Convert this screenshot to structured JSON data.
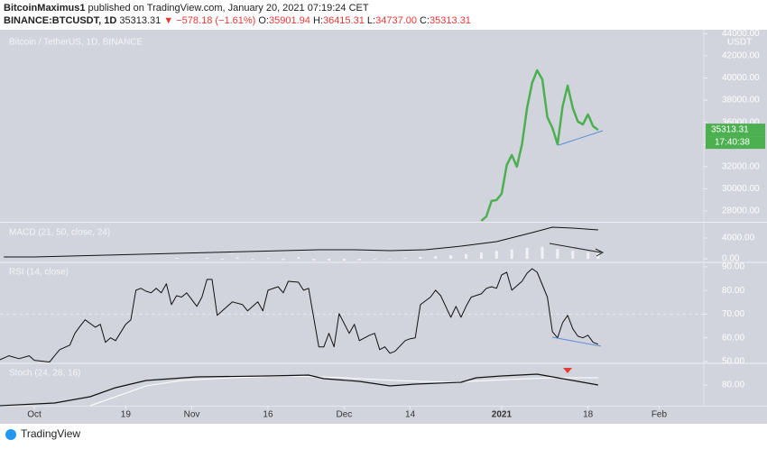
{
  "header": {
    "author": "BitcoinMaximus1",
    "published": "published on TradingView.com, January 20, 2021 07:19:24 CET",
    "symbol": "BINANCE:BTCUSDT, 1D",
    "last": "35313.31",
    "change": "▼ −578.18 (−1.61%)",
    "open_label": "O:",
    "open": "35901.94",
    "high_label": "H:",
    "high": "36415.31",
    "low_label": "L:",
    "low": "34737.00",
    "close_label": "C:",
    "close": "35313.31"
  },
  "footer": {
    "brand": "TradingView"
  },
  "chart_data": [
    {
      "type": "line",
      "title": "Bitcoin / TetherUS, 1D, BINANCE",
      "unit": "USDT",
      "last_value_label": "35313.31",
      "countdown": "17:40:38",
      "label_color": "#4caf50",
      "xlim": [
        -6.75,
        131.8
      ],
      "ylim": [
        27100,
        44030
      ],
      "yticks": [
        {
          "value": 28000,
          "label": "28000.00"
        },
        {
          "value": 30000,
          "label": "30000.00"
        },
        {
          "value": 32000,
          "label": "32000.00"
        },
        {
          "value": 34000,
          "label": "34000.00"
        },
        {
          "value": 36000,
          "label": "36000.00"
        },
        {
          "value": 38000,
          "label": "38000.00"
        },
        {
          "value": 40000,
          "label": "40000.00"
        },
        {
          "value": 42000,
          "label": "42000.00"
        },
        {
          "value": 44000,
          "label": "44000.00"
        }
      ],
      "series": [
        {
          "type": "line",
          "color": "#4caf50",
          "width": 2.5,
          "x": [
            88,
            89,
            90,
            91,
            92,
            93,
            94,
            95,
            96,
            97,
            98,
            99,
            100,
            101,
            102,
            103,
            104,
            105,
            106,
            107,
            108,
            109,
            110,
            111
          ],
          "values": [
            27100,
            27510,
            28900,
            28980,
            29550,
            32150,
            33040,
            31990,
            34020,
            37280,
            39550,
            40690,
            39880,
            36460,
            35490,
            34020,
            37440,
            39310,
            37280,
            36060,
            35810,
            36710,
            35650,
            35313.31
          ]
        }
      ]
    },
    {
      "type": "combo",
      "title": "MACD (21, 50, close, 24)",
      "xlim": [
        -6.75,
        131.8
      ],
      "ylim": [
        -520,
        6780
      ],
      "yticks": [
        {
          "value": 0,
          "label": "0.00"
        },
        {
          "value": 4000,
          "label": "4000.00"
        }
      ],
      "series": [
        {
          "type": "bar",
          "color": "#f2f2f6",
          "x": [
            28,
            31,
            34,
            37,
            40,
            43,
            46,
            49,
            52,
            55,
            58,
            61,
            64,
            67,
            70,
            73,
            76,
            79,
            82,
            85,
            88,
            91,
            94,
            97,
            100,
            103,
            106,
            109,
            111
          ],
          "values": [
            150,
            -100,
            200,
            -150,
            250,
            -200,
            150,
            -250,
            300,
            -300,
            -350,
            -400,
            -300,
            -200,
            -100,
            200,
            350,
            500,
            700,
            900,
            1200,
            1500,
            1800,
            2100,
            2300,
            1900,
            1500,
            1200,
            1000
          ]
        },
        {
          "type": "line",
          "color": "#111111",
          "width": 1,
          "x": [
            -6,
            0,
            7,
            14,
            21,
            28,
            35,
            42,
            49,
            56,
            63,
            70,
            77,
            84,
            91,
            98,
            102,
            106,
            111
          ],
          "values": [
            350,
            350,
            520,
            700,
            870,
            1040,
            1220,
            1390,
            1570,
            1740,
            1740,
            1570,
            1740,
            2430,
            3300,
            5040,
            6090,
            5910,
            5560
          ]
        }
      ]
    },
    {
      "type": "line",
      "title": "RSI (14, close)",
      "reference_lines": [
        70
      ],
      "xlim": [
        -6.75,
        131.8
      ],
      "ylim": [
        49.6,
        91.5
      ],
      "yticks": [
        {
          "value": 50,
          "label": "50.00"
        },
        {
          "value": 60,
          "label": "60.00"
        },
        {
          "value": 70,
          "label": "70.00"
        },
        {
          "value": 80,
          "label": "80.00"
        },
        {
          "value": 90,
          "label": "90.00"
        }
      ],
      "series": [
        {
          "type": "line",
          "color": "#111111",
          "width": 1,
          "x": [
            -7,
            -5,
            -3,
            -1,
            0,
            3,
            4,
            5,
            7,
            8,
            9,
            10,
            12,
            13,
            14,
            15,
            16,
            18,
            19,
            20,
            21,
            22,
            23,
            24,
            25,
            26,
            27,
            28,
            29,
            30,
            32,
            33,
            34,
            35,
            36,
            38,
            39,
            41,
            42,
            44,
            45,
            46,
            48,
            49,
            50,
            52,
            53,
            54,
            56,
            57,
            58,
            59,
            60,
            62,
            63,
            64,
            66,
            67,
            68,
            69,
            70,
            71,
            73,
            74,
            75,
            76,
            78,
            79,
            80,
            82,
            83,
            84,
            85,
            86,
            88,
            89,
            90,
            91,
            92,
            93,
            94,
            96,
            97,
            98,
            99,
            101,
            102,
            103,
            104,
            105,
            106,
            107,
            108,
            109,
            110,
            111
          ],
          "values": [
            50.5,
            52.4,
            51.2,
            52.4,
            50.5,
            49.8,
            52.4,
            55,
            56.9,
            61.9,
            64.9,
            67.6,
            64.5,
            65.7,
            58.1,
            60,
            58.8,
            65.7,
            67.6,
            80.1,
            80.9,
            79.7,
            79,
            80.9,
            79,
            82.8,
            74,
            77.8,
            77.2,
            79,
            73.3,
            77.2,
            84.7,
            84.7,
            69.5,
            73.3,
            75.2,
            74,
            71.4,
            75.2,
            71.4,
            80.1,
            81.6,
            79,
            83.9,
            83.5,
            80.1,
            80.9,
            56.2,
            56.2,
            61.9,
            56.2,
            70.2,
            61.9,
            65.7,
            58.8,
            61.1,
            61.9,
            55,
            56.2,
            53.5,
            54.3,
            58.8,
            59.6,
            60,
            74,
            77.2,
            80.1,
            77.8,
            68.7,
            73.3,
            68.7,
            73.3,
            77.2,
            78.6,
            80.9,
            81.6,
            80.9,
            86.6,
            87.7,
            80.1,
            83.9,
            87.3,
            89.2,
            87.7,
            77.2,
            62.6,
            60,
            66.4,
            69.5,
            63.8,
            60.7,
            60,
            61.1,
            58.1,
            57.3
          ]
        }
      ]
    },
    {
      "type": "line",
      "title": "Stoch (24, 28, 16)",
      "xlim": [
        -6.75,
        131.8
      ],
      "ylim": [
        57,
        103
      ],
      "yticks": [
        {
          "value": 80,
          "label": "80.00"
        }
      ],
      "xticks": [
        {
          "value": 0,
          "label": "Oct"
        },
        {
          "value": 18,
          "label": "19"
        },
        {
          "value": 31,
          "label": "Nov"
        },
        {
          "value": 46,
          "label": "16"
        },
        {
          "value": 61,
          "label": "Dec"
        },
        {
          "value": 74,
          "label": "14"
        },
        {
          "value": 92,
          "label": "2021"
        },
        {
          "value": 109,
          "label": "18"
        },
        {
          "value": 123,
          "label": "Feb"
        }
      ],
      "series": [
        {
          "type": "line",
          "color": "#ffffff",
          "width": 1,
          "x": [
            11,
            16,
            22,
            29,
            39,
            50,
            61,
            71,
            82,
            93,
            102,
            111
          ],
          "values": [
            57,
            67,
            79,
            85,
            88,
            90,
            88,
            85,
            83,
            86,
            88,
            88
          ]
        },
        {
          "type": "line",
          "color": "#111111",
          "width": 1.2,
          "x": [
            -7,
            4,
            11,
            16,
            22,
            32,
            46,
            54,
            57,
            64,
            70,
            75,
            84,
            87,
            92,
            99,
            103,
            107,
            111
          ],
          "values": [
            57,
            60,
            67,
            77,
            85,
            89,
            90,
            91,
            87,
            84,
            79,
            81,
            83,
            88,
            90,
            92,
            88,
            84,
            80
          ]
        }
      ]
    }
  ]
}
